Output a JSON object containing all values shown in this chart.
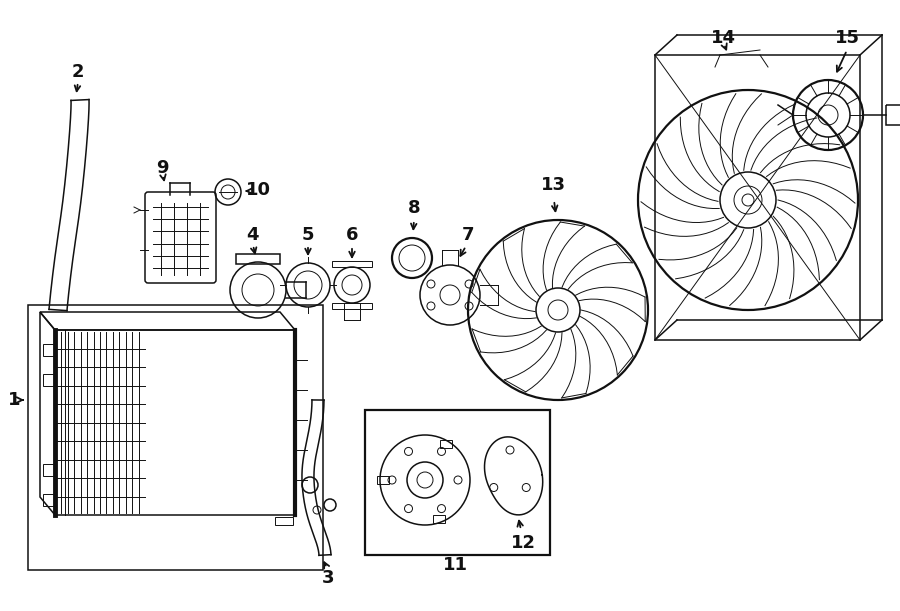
{
  "bg_color": "#ffffff",
  "line_color": "#111111",
  "fig_width": 9.0,
  "fig_height": 6.11,
  "dpi": 100
}
